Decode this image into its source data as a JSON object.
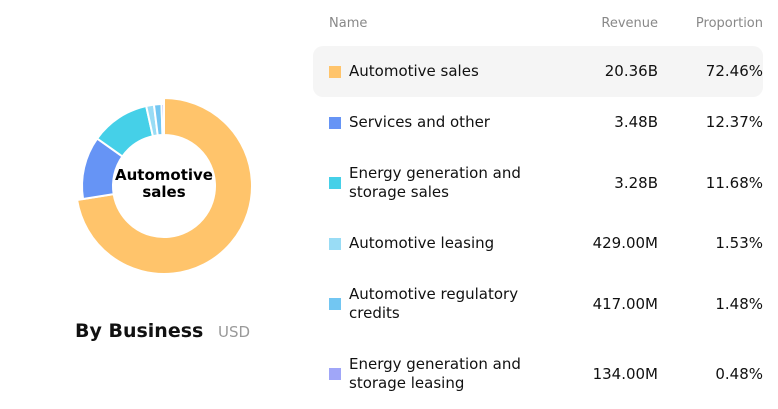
{
  "chart_data": {
    "type": "donut",
    "title": "By Business",
    "subtitle": "USD",
    "center_label": "Automotive sales",
    "columns": [
      "Name",
      "Revenue",
      "Proportion"
    ],
    "categories": [
      "Automotive sales",
      "Services and other",
      "Energy generation and storage sales",
      "Automotive leasing",
      "Automotive regulatory credits",
      "Energy generation and storage leasing"
    ],
    "colors": [
      "#ffc46b",
      "#6694f5",
      "#45d0e8",
      "#99dcf5",
      "#72c6f2",
      "#a0a6f8"
    ],
    "revenue": [
      "20.36B",
      "3.48B",
      "3.28B",
      "429.00M",
      "417.00M",
      "134.00M"
    ],
    "values": [
      72.46,
      12.37,
      11.68,
      1.53,
      1.48,
      0.48
    ],
    "value_labels": [
      "72.46%",
      "12.37%",
      "11.68%",
      "1.53%",
      "1.48%",
      "0.48%"
    ]
  }
}
